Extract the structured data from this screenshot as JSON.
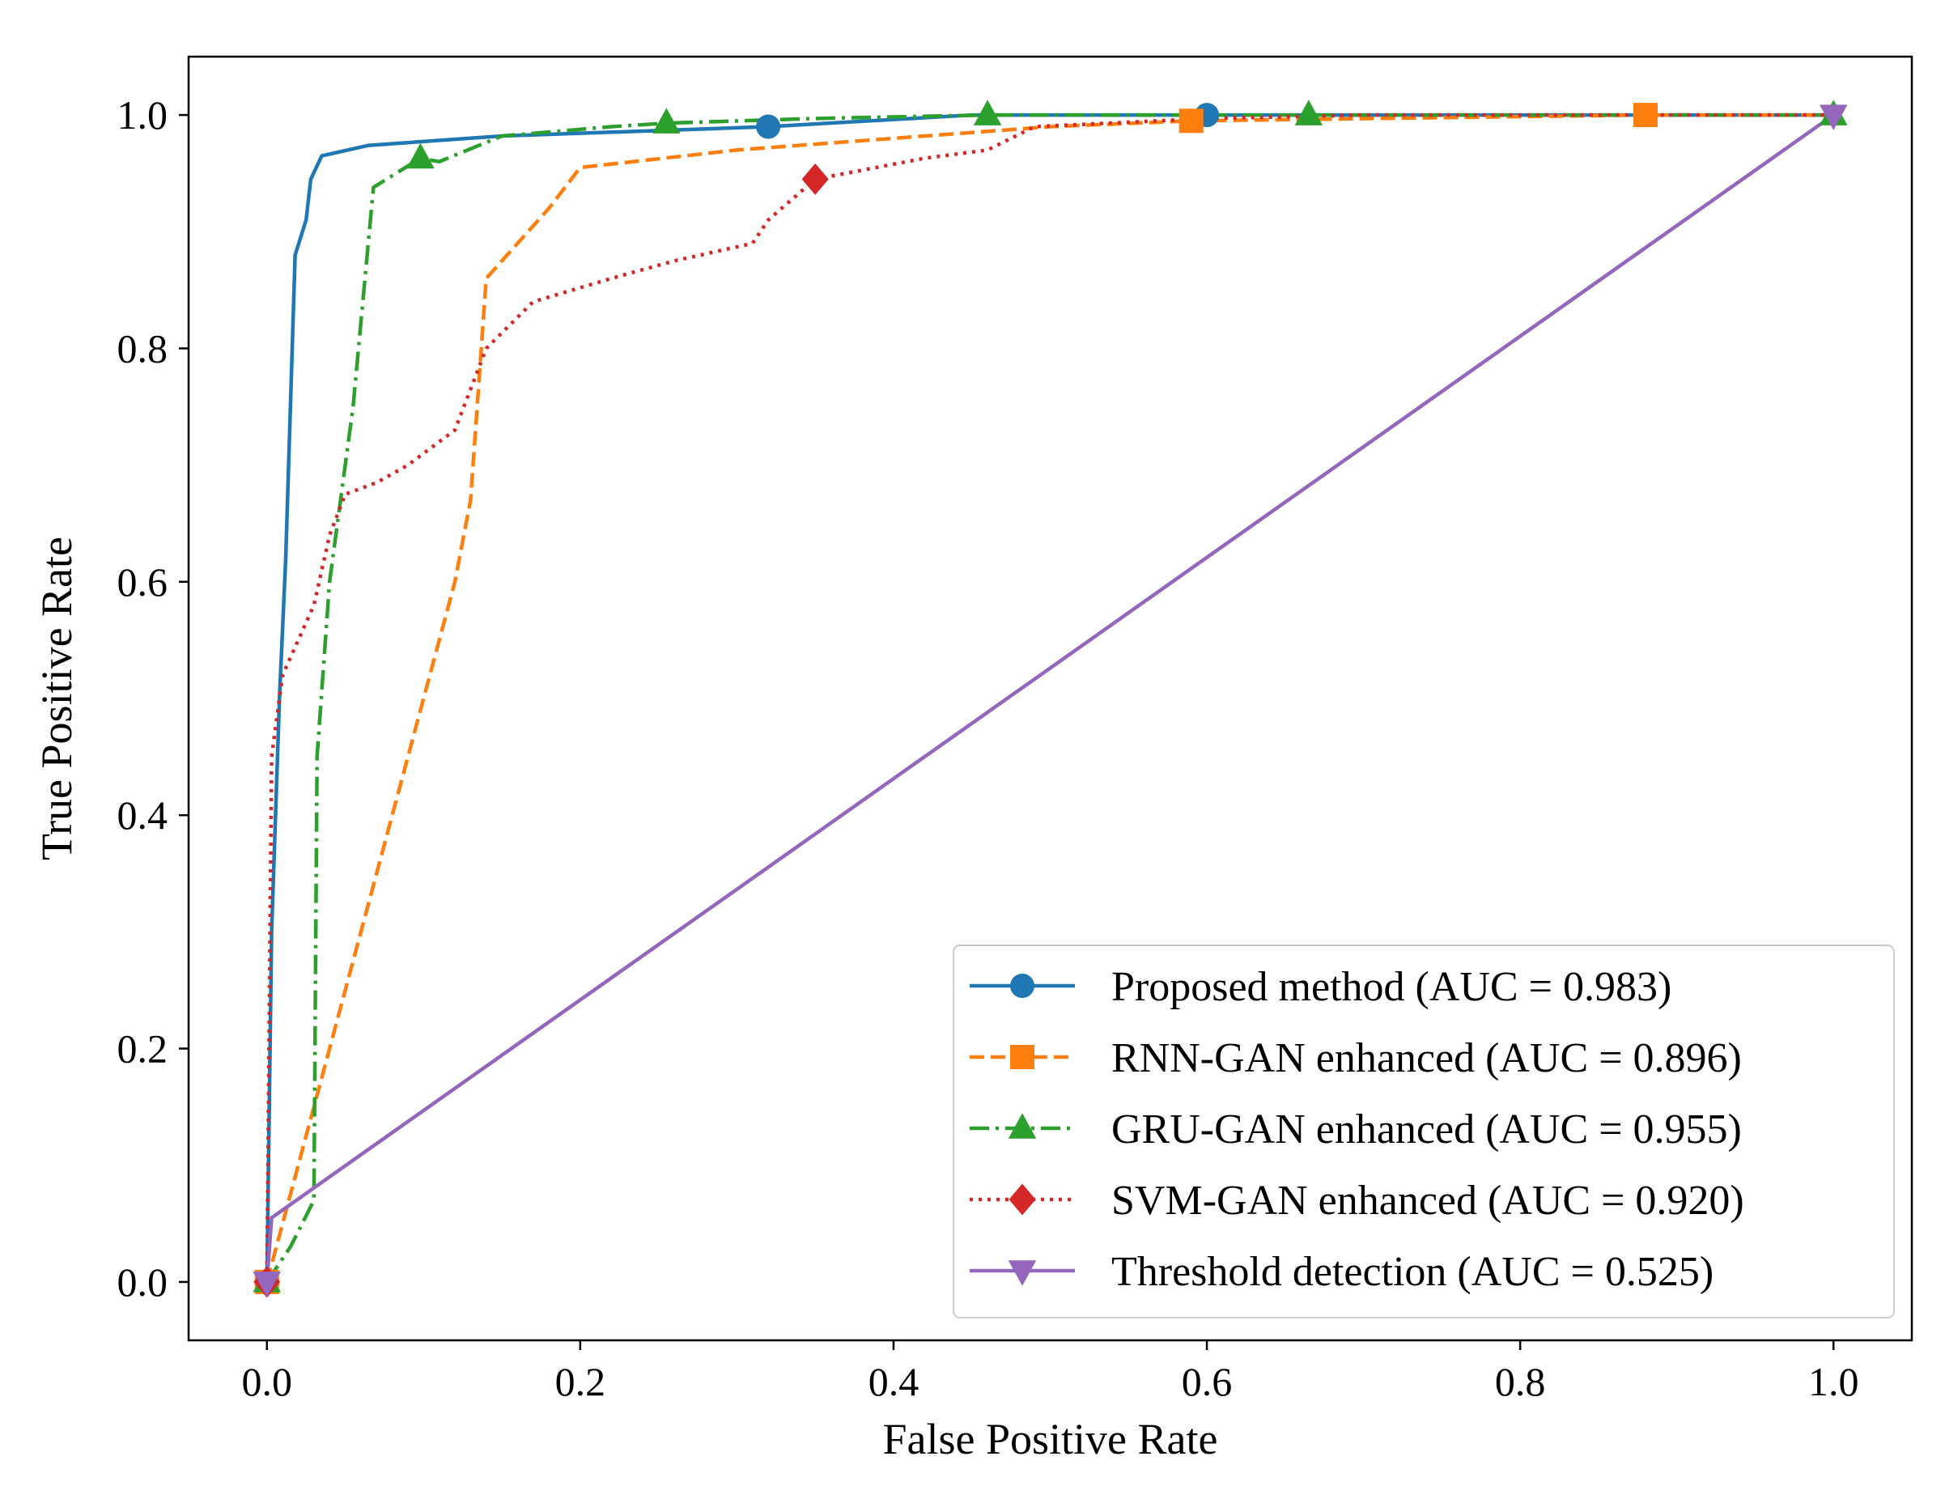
{
  "chart_data": {
    "type": "line",
    "title": "",
    "xlabel": "False Positive Rate",
    "ylabel": "True Positive Rate",
    "xlim": [
      -0.05,
      1.05
    ],
    "ylim": [
      -0.05,
      1.05
    ],
    "xticks": [
      "0.0",
      "0.2",
      "0.4",
      "0.6",
      "0.8",
      "1.0"
    ],
    "yticks": [
      "0.0",
      "0.2",
      "0.4",
      "0.6",
      "0.8",
      "1.0"
    ],
    "grid": false,
    "legend_position": "lower-right",
    "series": [
      {
        "name": "Proposed method (AUC = 0.983)",
        "color": "#1f77b4",
        "linestyle": "solid",
        "marker": "circle",
        "points": [
          [
            0,
            0
          ],
          [
            0.003,
            0.3
          ],
          [
            0.008,
            0.5
          ],
          [
            0.012,
            0.62
          ],
          [
            0.015,
            0.75
          ],
          [
            0.018,
            0.88
          ],
          [
            0.025,
            0.91
          ],
          [
            0.028,
            0.945
          ],
          [
            0.035,
            0.965
          ],
          [
            0.065,
            0.974
          ],
          [
            0.15,
            0.982
          ],
          [
            0.32,
            0.99
          ],
          [
            0.45,
            1.0
          ],
          [
            0.6,
            1.0
          ],
          [
            0.7,
            1.0
          ],
          [
            1.0,
            1.0
          ]
        ],
        "marker_points": [
          [
            0,
            0
          ],
          [
            0.32,
            0.99
          ],
          [
            0.6,
            1.0
          ]
        ]
      },
      {
        "name": "RNN-GAN enhanced (AUC = 0.896)",
        "color": "#ff7f0e",
        "linestyle": "dashed",
        "marker": "square",
        "points": [
          [
            0,
            0
          ],
          [
            0.03,
            0.15
          ],
          [
            0.07,
            0.35
          ],
          [
            0.1,
            0.5
          ],
          [
            0.12,
            0.6
          ],
          [
            0.13,
            0.67
          ],
          [
            0.14,
            0.86
          ],
          [
            0.18,
            0.92
          ],
          [
            0.2,
            0.955
          ],
          [
            0.3,
            0.97
          ],
          [
            0.5,
            0.99
          ],
          [
            0.59,
            0.995
          ],
          [
            0.88,
            1.0
          ],
          [
            1.0,
            1.0
          ]
        ],
        "marker_points": [
          [
            0,
            0
          ],
          [
            0.59,
            0.995
          ],
          [
            0.88,
            1.0
          ]
        ]
      },
      {
        "name": "GRU-GAN enhanced (AUC = 0.955)",
        "color": "#2ca02c",
        "linestyle": "dashdot",
        "marker": "triangle-up",
        "points": [
          [
            0,
            0
          ],
          [
            0.015,
            0.03
          ],
          [
            0.03,
            0.07
          ],
          [
            0.032,
            0.45
          ],
          [
            0.04,
            0.6
          ],
          [
            0.055,
            0.75
          ],
          [
            0.068,
            0.938
          ],
          [
            0.098,
            0.963
          ],
          [
            0.11,
            0.96
          ],
          [
            0.15,
            0.982
          ],
          [
            0.22,
            0.99
          ],
          [
            0.255,
            0.993
          ],
          [
            0.35,
            0.997
          ],
          [
            0.46,
            1.0
          ],
          [
            0.67,
            1.0
          ],
          [
            1.0,
            1.0
          ]
        ],
        "marker_points": [
          [
            0,
            0
          ],
          [
            0.098,
            0.963
          ],
          [
            0.255,
            0.993
          ],
          [
            0.46,
            1.0
          ],
          [
            0.665,
            1.0
          ],
          [
            1.0,
            1.0
          ]
        ]
      },
      {
        "name": "SVM-GAN enhanced (AUC = 0.920)",
        "color": "#d62728",
        "linestyle": "dotted",
        "marker": "diamond",
        "points": [
          [
            0,
            0
          ],
          [
            0.003,
            0.45
          ],
          [
            0.01,
            0.52
          ],
          [
            0.03,
            0.58
          ],
          [
            0.04,
            0.64
          ],
          [
            0.05,
            0.675
          ],
          [
            0.07,
            0.685
          ],
          [
            0.09,
            0.7
          ],
          [
            0.12,
            0.73
          ],
          [
            0.14,
            0.8
          ],
          [
            0.17,
            0.84
          ],
          [
            0.22,
            0.86
          ],
          [
            0.26,
            0.875
          ],
          [
            0.31,
            0.89
          ],
          [
            0.32,
            0.91
          ],
          [
            0.35,
            0.945
          ],
          [
            0.42,
            0.963
          ],
          [
            0.46,
            0.97
          ],
          [
            0.49,
            0.99
          ],
          [
            0.6,
            0.997
          ],
          [
            0.7,
            1.0
          ],
          [
            1.0,
            1.0
          ]
        ],
        "marker_points": [
          [
            0,
            0
          ],
          [
            0.35,
            0.945
          ]
        ]
      },
      {
        "name": "Threshold detection (AUC = 0.525)",
        "color": "#9467bd",
        "linestyle": "solid",
        "marker": "triangle-down",
        "points": [
          [
            0,
            0
          ],
          [
            0.003,
            0.055
          ],
          [
            1.0,
            1.0
          ]
        ],
        "marker_points": [
          [
            0,
            0
          ],
          [
            1.0,
            1.0
          ]
        ]
      }
    ]
  }
}
